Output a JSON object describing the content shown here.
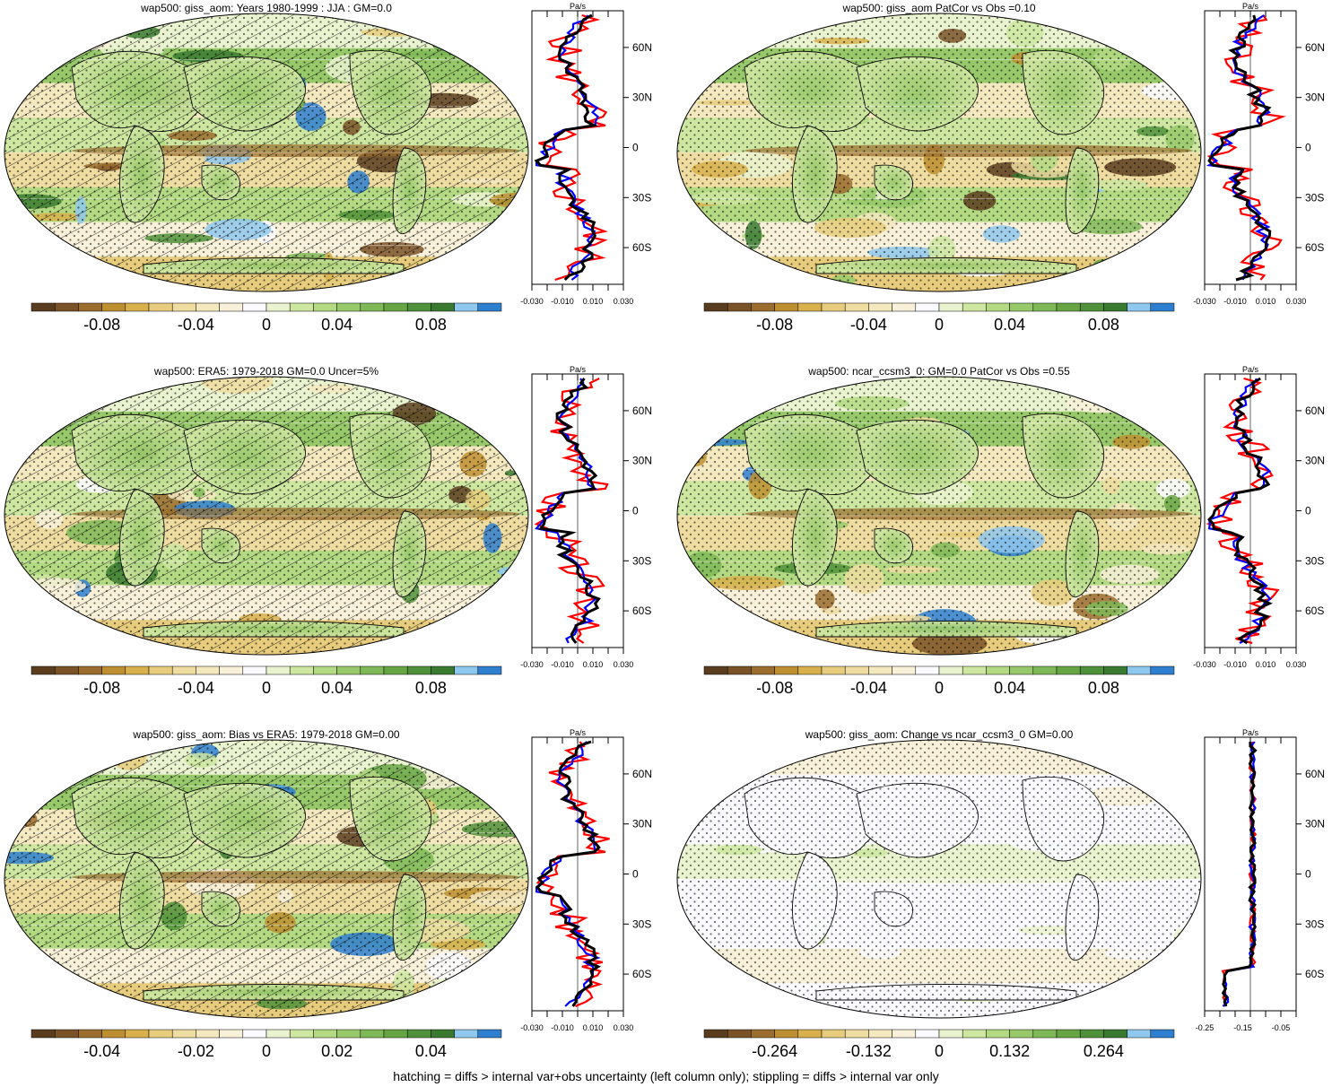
{
  "colors": {
    "palette": [
      "#5a3d1f",
      "#7a5228",
      "#9a6c2e",
      "#bd8f30",
      "#d8b04c",
      "#e6cc7c",
      "#efdca0",
      "#f4e8bf",
      "#f8f0d8",
      "#fbfbff",
      "#eaf3cf",
      "#cde6a0",
      "#b3d983",
      "#97c96a",
      "#7fb857",
      "#67a544",
      "#4f913a",
      "#3a7a30",
      "#8fc8ee",
      "#2f7fd0"
    ],
    "land_outline": "#000000",
    "profile_model": "#000000",
    "profile_obs": "#ff0000",
    "profile_alt": "#0000ff"
  },
  "panels": [
    {
      "title": "wap500: giss_aom: Years 1980-1999 : JJA : GM=0.0",
      "hatching": true,
      "colorbar_ticks": [
        "-0.08",
        "-0.04",
        "0",
        "0.04",
        "0.08"
      ],
      "profile_unit": "Pa/s",
      "profile_xticks": [
        "-0.030",
        "-0.010",
        "0.010",
        "0.030"
      ],
      "profile_yticks": [
        "60N",
        "30N",
        "0",
        "30S",
        "60S"
      ]
    },
    {
      "title": "wap500: giss_aom PatCor vs Obs =0.10",
      "hatching": false,
      "colorbar_ticks": [
        "-0.08",
        "-0.04",
        "0",
        "0.04",
        "0.08"
      ],
      "profile_unit": "Pa/s",
      "profile_xticks": [
        "-0.030",
        "-0.010",
        "0.010",
        "0.030"
      ],
      "profile_yticks": [
        "60N",
        "30N",
        "0",
        "30S",
        "60S"
      ]
    },
    {
      "title": "wap500: ERA5: 1979-2018 GM=0.0 Uncer=5%",
      "hatching": true,
      "colorbar_ticks": [
        "-0.08",
        "-0.04",
        "0",
        "0.04",
        "0.08"
      ],
      "profile_unit": "Pa/s",
      "profile_xticks": [
        "-0.030",
        "-0.010",
        "0.010",
        "0.030"
      ],
      "profile_yticks": [
        "60N",
        "30N",
        "0",
        "30S",
        "60S"
      ]
    },
    {
      "title": "wap500: ncar_ccsm3_0: GM=0.0 PatCor vs Obs =0.55",
      "hatching": false,
      "colorbar_ticks": [
        "-0.08",
        "-0.04",
        "0",
        "0.04",
        "0.08"
      ],
      "profile_unit": "Pa/s",
      "profile_xticks": [
        "-0.030",
        "-0.010",
        "0.010",
        "0.030"
      ],
      "profile_yticks": [
        "60N",
        "30N",
        "0",
        "30S",
        "60S"
      ]
    },
    {
      "title": "wap500: giss_aom: Bias vs ERA5: 1979-2018 GM=0.00",
      "hatching": true,
      "colorbar_ticks": [
        "-0.04",
        "-0.02",
        "0",
        "0.02",
        "0.04"
      ],
      "profile_unit": "Pa/s",
      "profile_xticks": [
        "-0.030",
        "-0.010",
        "0.010",
        "0.030"
      ],
      "profile_yticks": [
        "60N",
        "30N",
        "0",
        "30S",
        "60S"
      ]
    },
    {
      "title": "wap500: giss_aom: Change vs ncar_ccsm3_0 GM=0.00",
      "hatching": false,
      "colorbar_ticks": [
        "-0.264",
        "-0.132",
        "0",
        "0.132",
        "0.264"
      ],
      "profile_unit": "Pa/s",
      "profile_xticks": [
        "-0.25",
        "-0.15",
        "-0.05"
      ],
      "profile_yticks": [
        "60N",
        "30N",
        "0",
        "30S",
        "60S"
      ]
    }
  ],
  "footer": "hatching = diffs > internal var+obs uncertainty (left column only); stippling = diffs > internal var only"
}
